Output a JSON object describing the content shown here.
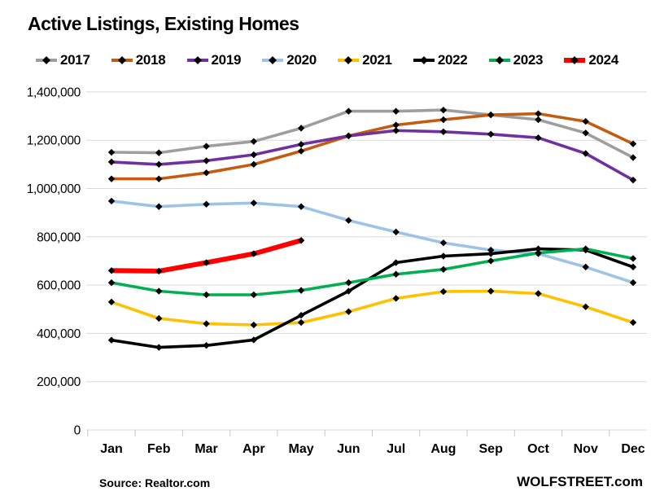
{
  "chart_data": {
    "type": "line",
    "title": "Active Listings, Existing Homes",
    "xlabel": "",
    "ylabel": "",
    "x_categories": [
      "Jan",
      "Feb",
      "Mar",
      "Apr",
      "May",
      "Jun",
      "Jul",
      "Aug",
      "Sep",
      "Oct",
      "Nov",
      "Dec"
    ],
    "ylim": [
      0,
      1400000
    ],
    "y_tick_step": 200000,
    "y_tick_labels": [
      "0",
      "200,000",
      "400,000",
      "600,000",
      "800,000",
      "1,000,000",
      "1,200,000",
      "1,400,000"
    ],
    "grid": "horizontal",
    "legend_position": "top",
    "marker": "black-diamond",
    "series": [
      {
        "name": "2017",
        "color": "#9e9e9e",
        "values": [
          1150000,
          1148000,
          1175000,
          1195000,
          1250000,
          1320000,
          1320000,
          1325000,
          1305000,
          1285000,
          1230000,
          1128000
        ]
      },
      {
        "name": "2018",
        "color": "#c55a11",
        "values": [
          1040000,
          1040000,
          1065000,
          1100000,
          1155000,
          1218000,
          1263000,
          1285000,
          1305000,
          1310000,
          1278000,
          1185000
        ]
      },
      {
        "name": "2019",
        "color": "#7030a0",
        "values": [
          1110000,
          1100000,
          1115000,
          1140000,
          1183000,
          1218000,
          1240000,
          1235000,
          1225000,
          1210000,
          1145000,
          1035000
        ]
      },
      {
        "name": "2020",
        "color": "#9dc3e6",
        "values": [
          948000,
          925000,
          935000,
          940000,
          925000,
          868000,
          820000,
          775000,
          745000,
          730000,
          675000,
          610000
        ]
      },
      {
        "name": "2021",
        "color": "#ffc000",
        "values": [
          530000,
          462000,
          440000,
          435000,
          445000,
          490000,
          545000,
          573000,
          575000,
          565000,
          510000,
          445000
        ]
      },
      {
        "name": "2022",
        "color": "#000000",
        "values": [
          372000,
          342000,
          350000,
          373000,
          475000,
          575000,
          693000,
          720000,
          730000,
          750000,
          745000,
          675000
        ]
      },
      {
        "name": "2023",
        "color": "#00b050",
        "values": [
          610000,
          575000,
          560000,
          560000,
          578000,
          610000,
          645000,
          665000,
          700000,
          733000,
          750000,
          710000
        ]
      },
      {
        "name": "2024",
        "color": "#ff0000",
        "thick": true,
        "values": [
          660000,
          658000,
          693000,
          730000,
          785000
        ]
      }
    ]
  },
  "footer": {
    "source": "Source: Realtor.com",
    "brand": "WOLFSTREET.com"
  },
  "style": {
    "gridline_color": "#d9d9d9",
    "tick_color": "#c8c8c8",
    "marker_color": "#000000"
  }
}
